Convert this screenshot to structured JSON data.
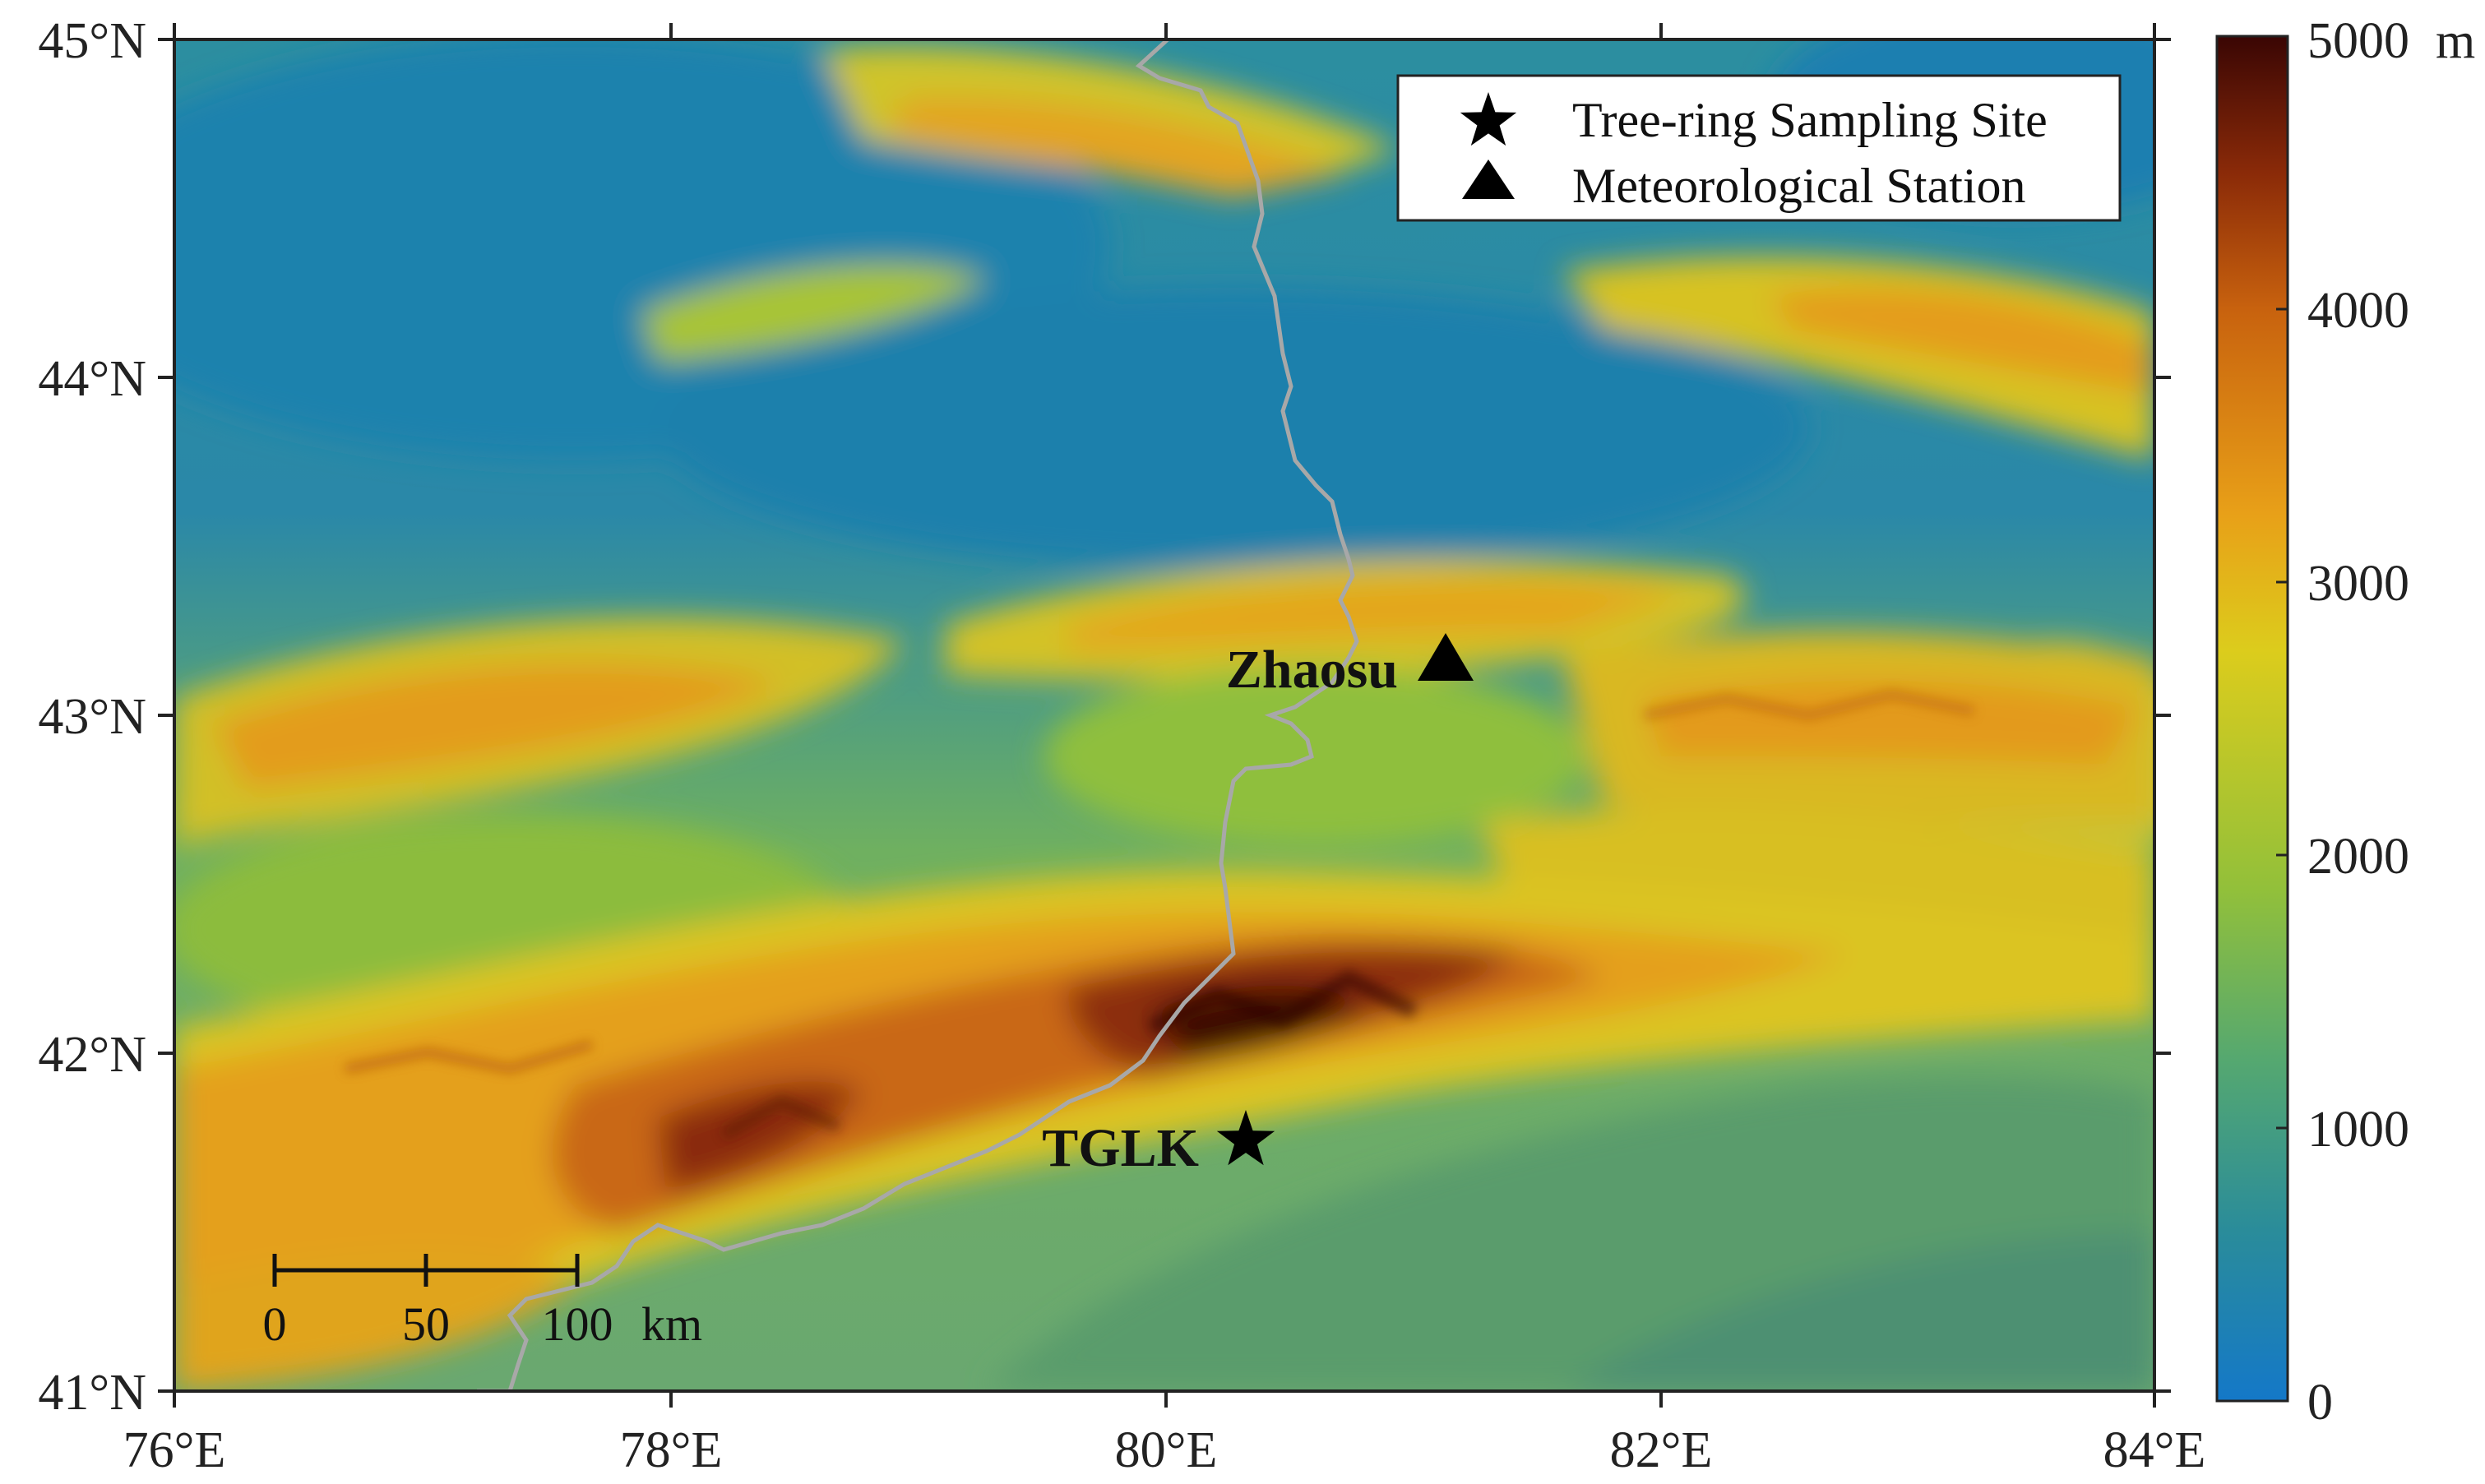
{
  "axes": {
    "x_labels": [
      "76°E",
      "78°E",
      "80°E",
      "82°E",
      "84°E"
    ],
    "y_labels": [
      "45°N",
      "44°N",
      "43°N",
      "42°N",
      "41°N"
    ]
  },
  "legend": {
    "items": [
      {
        "symbol": "star-icon",
        "label": "Tree-ring Sampling Site"
      },
      {
        "symbol": "triangle-icon",
        "label": "Meteorological Station"
      }
    ]
  },
  "places": [
    {
      "name": "Zhaosu",
      "symbol": "triangle-icon",
      "lon": 81.13,
      "lat": 43.15
    },
    {
      "name": "TGLK",
      "symbol": "star-icon",
      "lon": 80.3,
      "lat": 41.75
    }
  ],
  "colorbar": {
    "ticks": [
      "5000",
      "4000",
      "3000",
      "2000",
      "1000",
      "0"
    ],
    "unit": "m",
    "colors": [
      "#1478c8",
      "#2a8c9a",
      "#55a870",
      "#92c03a",
      "#dccc1c",
      "#e8a018",
      "#c8620e",
      "#8a2a08",
      "#3a0604"
    ]
  },
  "scale_bar": {
    "ticks": [
      "0",
      "50",
      "100"
    ],
    "unit": "km"
  },
  "colors": {
    "border_line": "#a8a8a8",
    "frame": "#222222"
  }
}
